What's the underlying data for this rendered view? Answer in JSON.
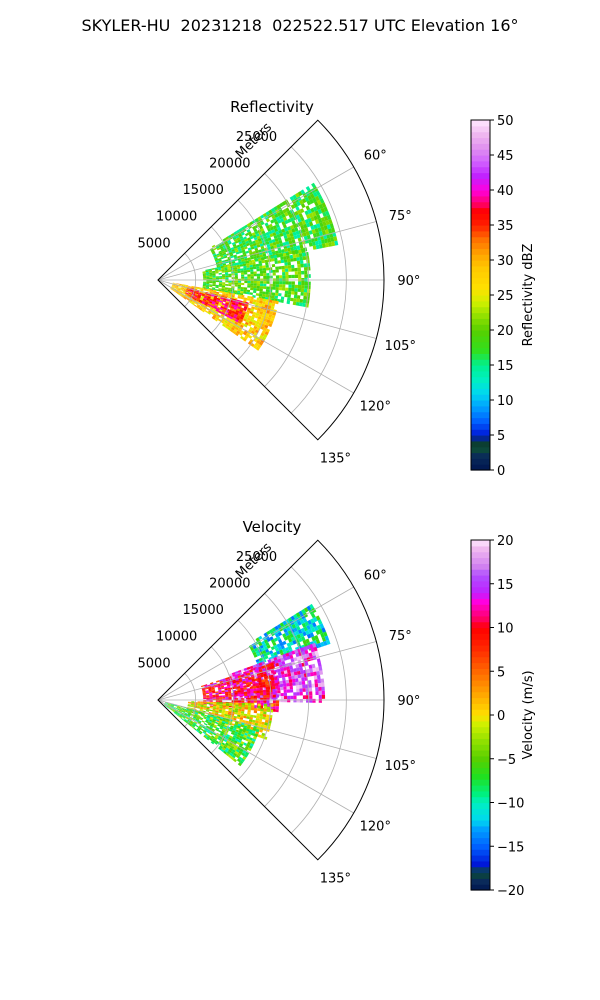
{
  "figure_title": "SKYLER-HU  20231218  022522.517 UTC Elevation 16°",
  "chart_data": [
    {
      "type": "heatmap",
      "subtype": "polar-sector (PPI)",
      "title": "Reflectivity",
      "radial_label": "Meters",
      "radial_ticks": [
        "5000",
        "10000",
        "15000",
        "20000",
        "25000"
      ],
      "radial_max": 30000,
      "angle_ticks": [
        "60°",
        "75°",
        "90°",
        "105°",
        "120°",
        "135°"
      ],
      "angle_range_deg": [
        45,
        135
      ],
      "grid": true,
      "colorbar": {
        "label": "Reflectivity dBZ",
        "min": 0,
        "max": 50,
        "ticks": [
          "0",
          "5",
          "10",
          "15",
          "20",
          "25",
          "30",
          "35",
          "40",
          "45",
          "50"
        ]
      },
      "echo_regions": [
        {
          "az_range": [
            58,
            78
          ],
          "range_m": [
            8000,
            24000
          ],
          "dominant_value": 18,
          "desc": "green band"
        },
        {
          "az_range": [
            78,
            100
          ],
          "range_m": [
            6000,
            20000
          ],
          "dominant_value": 19,
          "desc": "green/yellow"
        },
        {
          "az_range": [
            100,
            125
          ],
          "range_m": [
            2000,
            16000
          ],
          "dominant_value": 28,
          "desc": "yellow/orange core"
        },
        {
          "az_range": [
            104,
            118
          ],
          "range_m": [
            4000,
            12000
          ],
          "dominant_value": 36,
          "desc": "red core"
        }
      ]
    },
    {
      "type": "heatmap",
      "subtype": "polar-sector (PPI)",
      "title": "Velocity",
      "radial_label": "Meters",
      "radial_ticks": [
        "5000",
        "10000",
        "15000",
        "20000",
        "25000"
      ],
      "radial_max": 30000,
      "angle_ticks": [
        "60°",
        "75°",
        "90°",
        "105°",
        "120°",
        "135°"
      ],
      "angle_range_deg": [
        45,
        135
      ],
      "grid": true,
      "colorbar": {
        "label": "Velocity (m/s)",
        "min": -20,
        "max": 20,
        "ticks": [
          "−20",
          "−15",
          "−10",
          "−5",
          "0",
          "5",
          "10",
          "15",
          "20"
        ]
      },
      "echo_regions": [
        {
          "az_range": [
            58,
            72
          ],
          "range_m": [
            14000,
            24000
          ],
          "dominant_value": -10,
          "desc": "cyan/blue tip"
        },
        {
          "az_range": [
            70,
            90
          ],
          "range_m": [
            10000,
            22000
          ],
          "dominant_value": 15,
          "desc": "purple/magenta"
        },
        {
          "az_range": [
            72,
            95
          ],
          "range_m": [
            6000,
            16000
          ],
          "dominant_value": 10,
          "desc": "red/orange"
        },
        {
          "az_range": [
            92,
            110
          ],
          "range_m": [
            4000,
            15000
          ],
          "dominant_value": 0,
          "desc": "yellow"
        },
        {
          "az_range": [
            105,
            128
          ],
          "range_m": [
            1000,
            14000
          ],
          "dominant_value": -6,
          "desc": "green"
        }
      ]
    }
  ]
}
